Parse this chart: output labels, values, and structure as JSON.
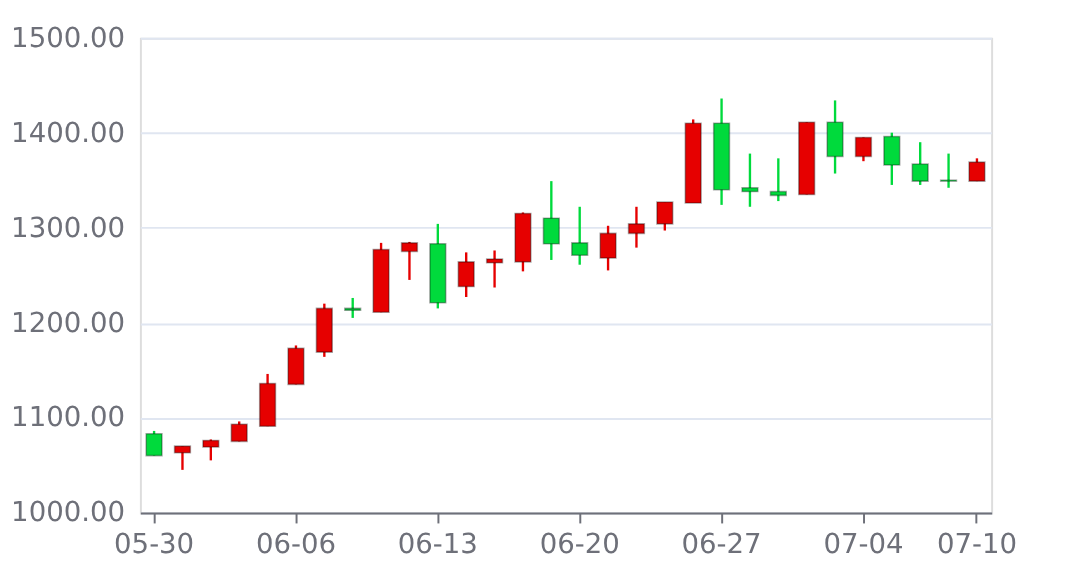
{
  "chart_data": {
    "type": "candlestick",
    "categories": [
      "05-30",
      null,
      null,
      null,
      null,
      "06-06",
      null,
      null,
      null,
      null,
      "06-13",
      null,
      null,
      null,
      null,
      "06-20",
      null,
      null,
      null,
      null,
      "06-27",
      null,
      null,
      null,
      null,
      "07-04",
      null,
      null,
      null,
      "07-10"
    ],
    "ohlc": [
      [
        1083,
        1086,
        1060,
        1060
      ],
      [
        1063,
        1070,
        1045,
        1070
      ],
      [
        1069,
        1077,
        1055,
        1076
      ],
      [
        1075,
        1096,
        1075,
        1093
      ],
      [
        1091,
        1146,
        1091,
        1136
      ],
      [
        1135,
        1176,
        1135,
        1173
      ],
      [
        1169,
        1220,
        1164,
        1215
      ],
      [
        1215,
        1226,
        1205,
        1213
      ],
      [
        1211,
        1284,
        1211,
        1277
      ],
      [
        1275,
        1285,
        1245,
        1284
      ],
      [
        1283,
        1304,
        1215,
        1221
      ],
      [
        1238,
        1274,
        1227,
        1264
      ],
      [
        1263,
        1276,
        1237,
        1267
      ],
      [
        1264,
        1316,
        1254,
        1315
      ],
      [
        1310,
        1349,
        1266,
        1283
      ],
      [
        1284,
        1322,
        1261,
        1271
      ],
      [
        1268,
        1302,
        1255,
        1294
      ],
      [
        1294,
        1322,
        1279,
        1304
      ],
      [
        1304,
        1327,
        1297,
        1327
      ],
      [
        1326,
        1414,
        1326,
        1410
      ],
      [
        1410,
        1436,
        1324,
        1340
      ],
      [
        1342,
        1378,
        1322,
        1338
      ],
      [
        1338,
        1373,
        1328,
        1334
      ],
      [
        1335,
        1411,
        1335,
        1411
      ],
      [
        1411,
        1434,
        1357,
        1375
      ],
      [
        1375,
        1395,
        1370,
        1395
      ],
      [
        1396,
        1400,
        1345,
        1366
      ],
      [
        1367,
        1390,
        1345,
        1349
      ],
      [
        1350,
        1378,
        1342,
        1349
      ],
      [
        1349,
        1373,
        1349,
        1369
      ]
    ],
    "colors": [
      "#00da3c",
      "#e60000",
      "#e60000",
      "#e60000",
      "#e60000",
      "#e60000",
      "#e60000",
      "#00da3c",
      "#e60000",
      "#e60000",
      "#00da3c",
      "#e60000",
      "#e60000",
      "#e60000",
      "#00da3c",
      "#00da3c",
      "#e60000",
      "#e60000",
      "#e60000",
      "#e60000",
      "#00da3c",
      "#00da3c",
      "#00da3c",
      "#e60000",
      "#00da3c",
      "#e60000",
      "#00da3c",
      "#00da3c",
      "#00da3c",
      "#e60000"
    ],
    "ylim": [
      1000,
      1500
    ],
    "yticks": [
      {
        "value": 1000,
        "label": "1000.00"
      },
      {
        "value": 1100,
        "label": "1100.00"
      },
      {
        "value": 1200,
        "label": "1200.00"
      },
      {
        "value": 1300,
        "label": "1300.00"
      },
      {
        "value": 1400,
        "label": "1400.00"
      },
      {
        "value": 1500,
        "label": "1500.00"
      }
    ],
    "grid": "y"
  }
}
